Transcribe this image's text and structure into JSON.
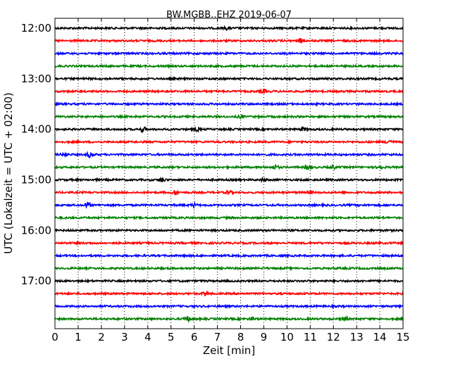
{
  "chart_data": {
    "type": "line",
    "title": "BW.MGBB..EHZ 2019-06-07",
    "xlabel": "Zeit  [min]",
    "ylabel": "UTC (Lokalzeit = UTC + 02:00)",
    "xlim": [
      0,
      15
    ],
    "x_ticks": [
      0,
      1,
      2,
      3,
      4,
      5,
      6,
      7,
      8,
      9,
      10,
      11,
      12,
      13,
      14,
      15
    ],
    "x_tick_labels": [
      "0",
      "1",
      "2",
      "3",
      "4",
      "5",
      "6",
      "7",
      "8",
      "9",
      "10",
      "11",
      "12",
      "13",
      "14",
      "15"
    ],
    "y_tick_labels": [
      "12:00",
      "13:00",
      "14:00",
      "15:00",
      "16:00",
      "17:00"
    ],
    "grid": "vertical-dotted",
    "color_cycle": [
      "#000000",
      "#ff0000",
      "#0000ff",
      "#008000"
    ],
    "traces": [
      {
        "start": "12:00",
        "color": "#000000",
        "events": [
          [
            7.4,
            1.5
          ]
        ]
      },
      {
        "start": "12:15",
        "color": "#ff0000",
        "events": [
          [
            10.6,
            2.5
          ]
        ]
      },
      {
        "start": "12:30",
        "color": "#0000ff",
        "events": []
      },
      {
        "start": "12:45",
        "color": "#008000",
        "events": []
      },
      {
        "start": "13:00",
        "color": "#000000",
        "events": []
      },
      {
        "start": "13:15",
        "color": "#ff0000",
        "events": [
          [
            9.0,
            2.0
          ]
        ]
      },
      {
        "start": "13:30",
        "color": "#0000ff",
        "events": []
      },
      {
        "start": "13:45",
        "color": "#008000",
        "events": [
          [
            8.0,
            1.5
          ]
        ]
      },
      {
        "start": "14:00",
        "color": "#000000",
        "events": [
          [
            3.8,
            3.0
          ],
          [
            6.1,
            2.5
          ],
          [
            10.7,
            2.0
          ]
        ]
      },
      {
        "start": "14:15",
        "color": "#ff0000",
        "events": [
          [
            14.4,
            3.0
          ]
        ]
      },
      {
        "start": "14:30",
        "color": "#0000ff",
        "events": [
          [
            0.4,
            2.0
          ],
          [
            1.5,
            3.5
          ]
        ]
      },
      {
        "start": "14:45",
        "color": "#008000",
        "events": [
          [
            9.5,
            2.5
          ],
          [
            10.9,
            3.0
          ],
          [
            12.0,
            2.0
          ],
          [
            14.0,
            2.5
          ]
        ]
      },
      {
        "start": "15:00",
        "color": "#000000",
        "events": [
          [
            4.6,
            3.0
          ],
          [
            9.0,
            2.0
          ]
        ]
      },
      {
        "start": "15:15",
        "color": "#ff0000",
        "events": [
          [
            5.2,
            3.0
          ],
          [
            7.5,
            2.5
          ],
          [
            11.0,
            2.0
          ]
        ]
      },
      {
        "start": "15:30",
        "color": "#0000ff",
        "events": [
          [
            1.4,
            3.5
          ],
          [
            6.0,
            2.0
          ]
        ]
      },
      {
        "start": "15:45",
        "color": "#008000",
        "events": []
      },
      {
        "start": "16:00",
        "color": "#000000",
        "events": []
      },
      {
        "start": "16:15",
        "color": "#ff0000",
        "events": []
      },
      {
        "start": "16:30",
        "color": "#0000ff",
        "events": []
      },
      {
        "start": "16:45",
        "color": "#008000",
        "events": []
      },
      {
        "start": "17:00",
        "color": "#000000",
        "events": []
      },
      {
        "start": "17:15",
        "color": "#ff0000",
        "events": [
          [
            6.5,
            2.0
          ]
        ]
      },
      {
        "start": "17:30",
        "color": "#0000ff",
        "events": []
      },
      {
        "start": "17:45",
        "color": "#008000",
        "events": [
          [
            5.7,
            3.0
          ],
          [
            8.5,
            2.0
          ],
          [
            12.5,
            2.0
          ]
        ]
      }
    ]
  }
}
